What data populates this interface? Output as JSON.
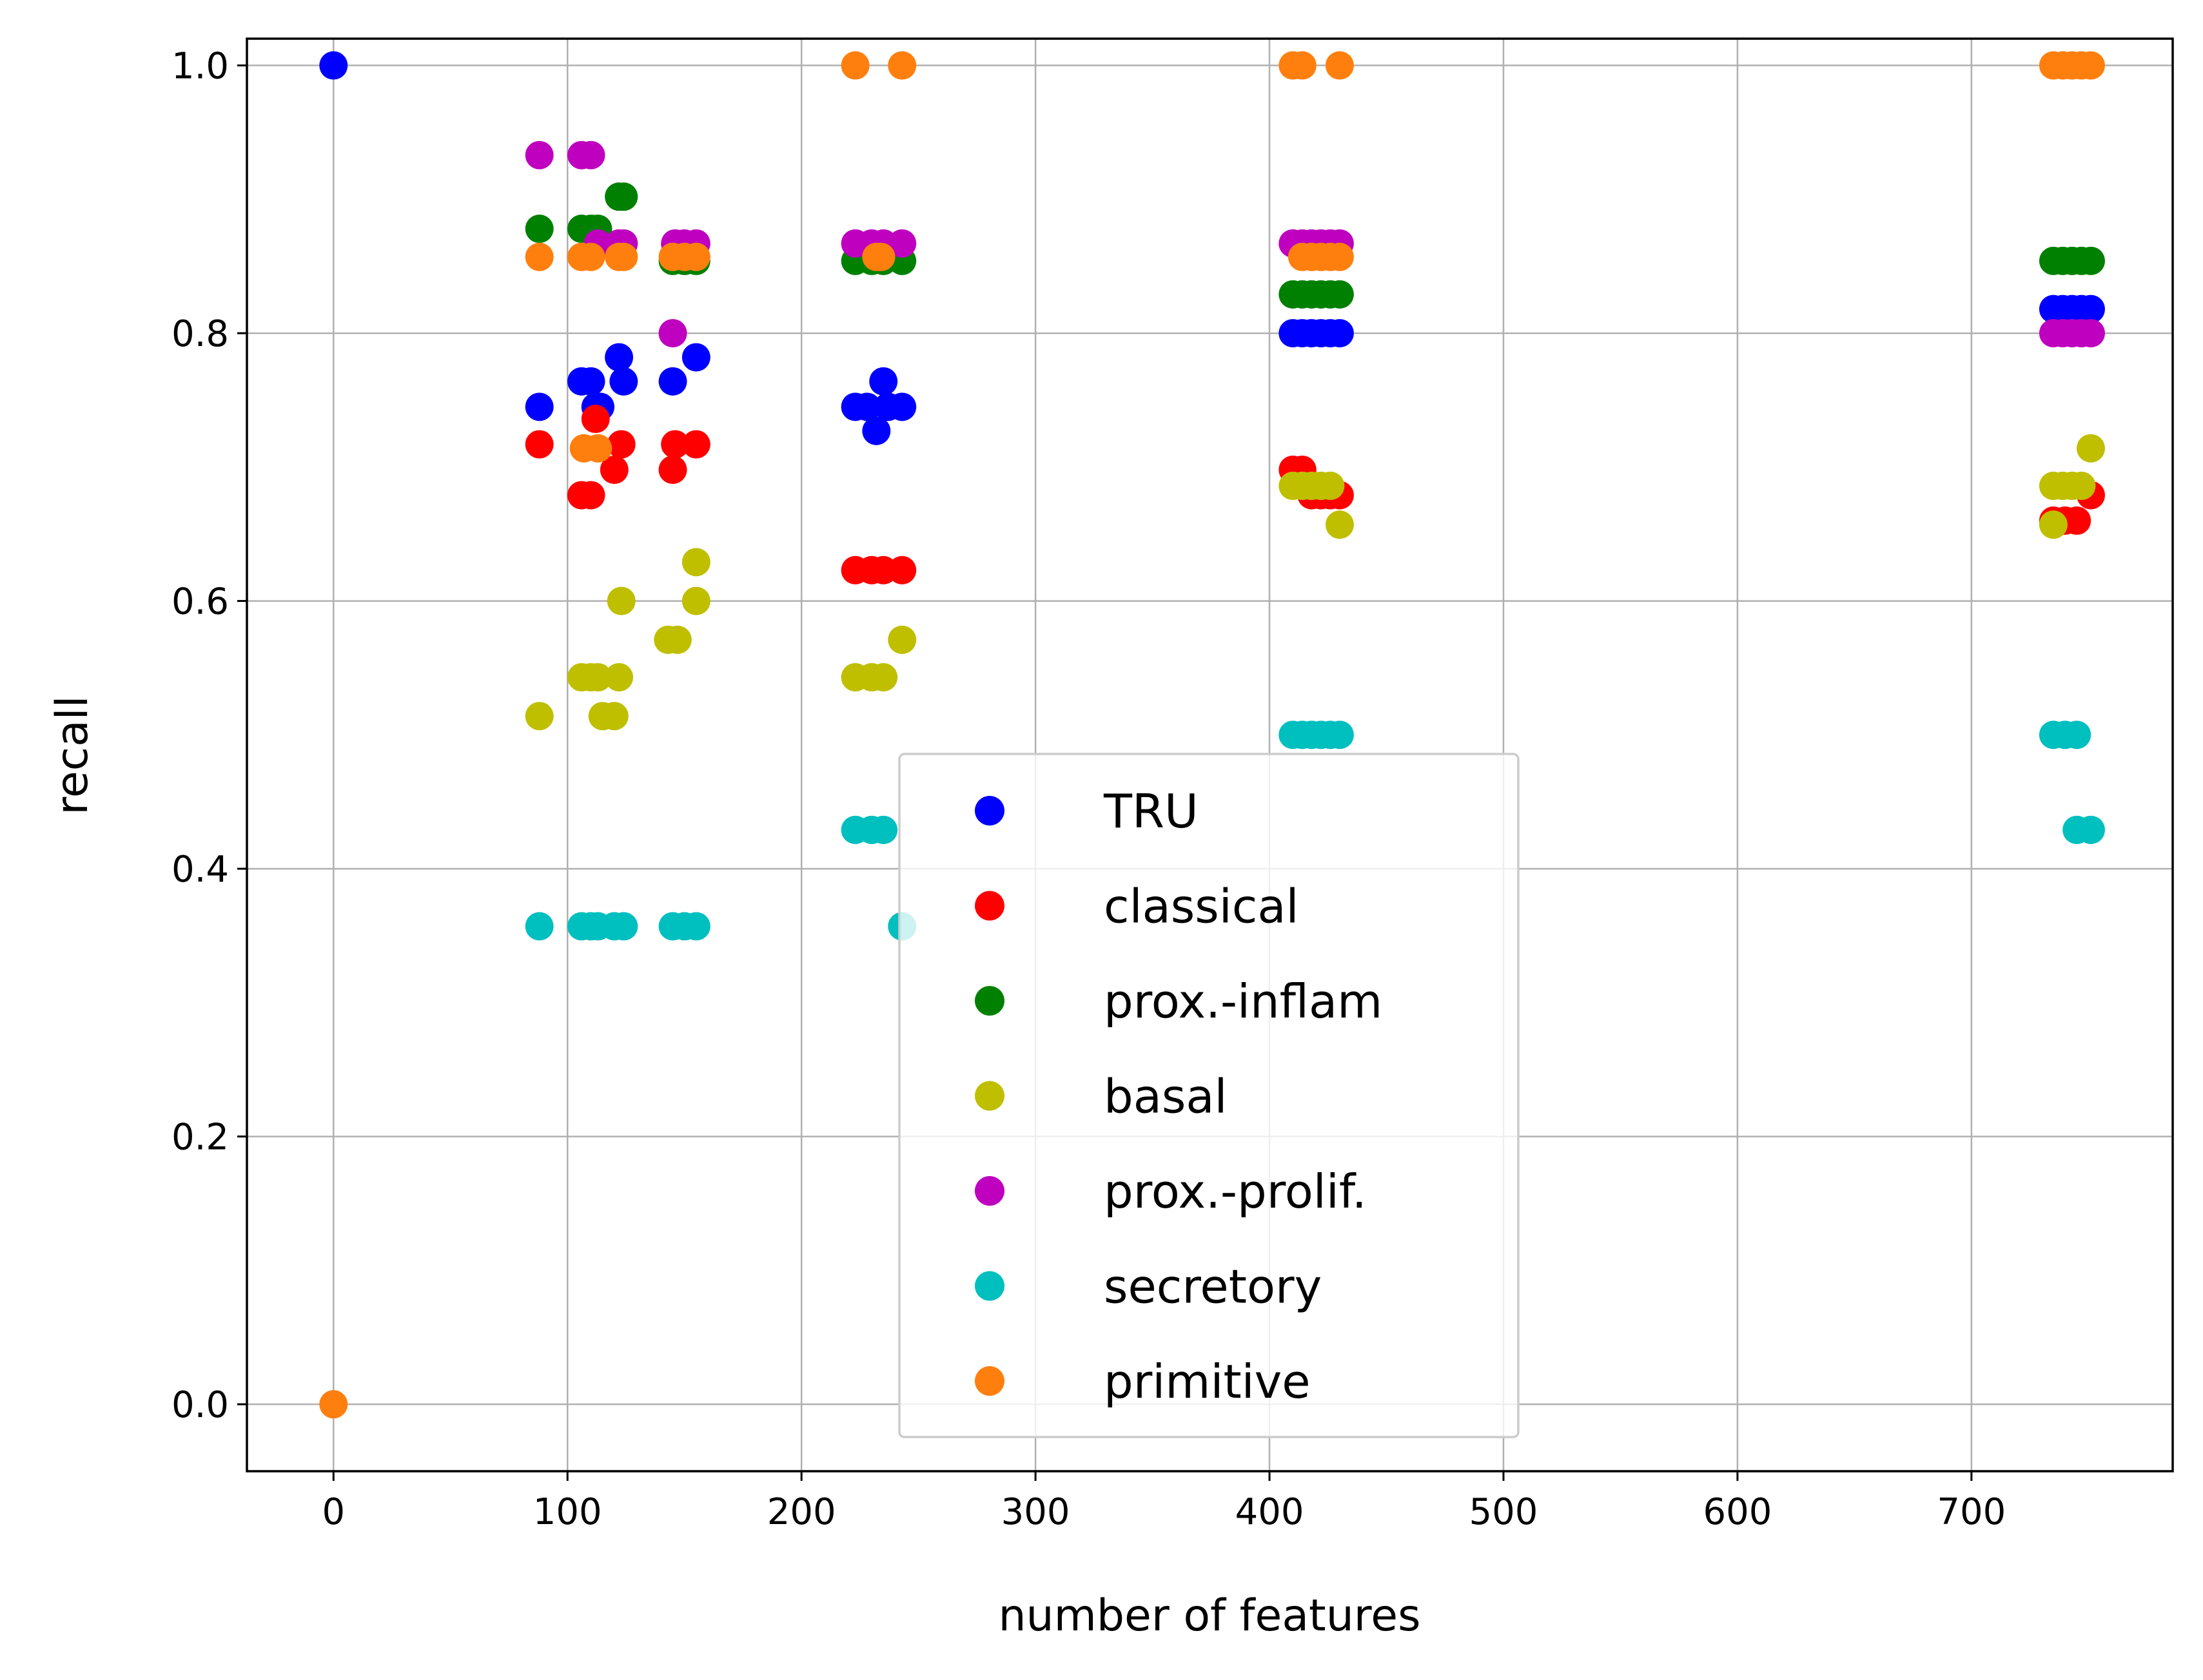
{
  "chart_data": {
    "type": "scatter",
    "title": "",
    "xlabel": "number of features",
    "ylabel": "recall",
    "xlim": [
      -37,
      786
    ],
    "ylim": [
      -0.05,
      1.02
    ],
    "xticks": [
      0,
      100,
      200,
      300,
      400,
      500,
      600,
      700
    ],
    "yticks": [
      0.0,
      0.2,
      0.4,
      0.6,
      0.8,
      1.0
    ],
    "xtick_labels": [
      "0",
      "100",
      "200",
      "300",
      "400",
      "500",
      "600",
      "700"
    ],
    "ytick_labels": [
      "0.0",
      "0.2",
      "0.4",
      "0.6",
      "0.8",
      "1.0"
    ],
    "grid": true,
    "legend_position": "lower-center",
    "series": [
      {
        "name": "TRU",
        "color": "#0000ff",
        "points": [
          [
            0,
            1.0
          ],
          [
            88,
            0.745
          ],
          [
            106,
            0.764
          ],
          [
            110,
            0.764
          ],
          [
            112,
            0.745
          ],
          [
            114,
            0.745
          ],
          [
            122,
            0.782
          ],
          [
            124,
            0.764
          ],
          [
            145,
            0.764
          ],
          [
            155,
            0.782
          ],
          [
            223,
            0.745
          ],
          [
            228,
            0.745
          ],
          [
            232,
            0.727
          ],
          [
            235,
            0.764
          ],
          [
            237,
            0.745
          ],
          [
            243,
            0.745
          ],
          [
            410,
            0.8
          ],
          [
            414,
            0.8
          ],
          [
            418,
            0.8
          ],
          [
            422,
            0.8
          ],
          [
            426,
            0.8
          ],
          [
            430,
            0.8
          ],
          [
            735,
            0.818
          ],
          [
            739,
            0.818
          ],
          [
            743,
            0.818
          ],
          [
            747,
            0.818
          ],
          [
            751,
            0.818
          ]
        ]
      },
      {
        "name": "classical",
        "color": "#ff0000",
        "points": [
          [
            88,
            0.717
          ],
          [
            106,
            0.679
          ],
          [
            110,
            0.679
          ],
          [
            112,
            0.736
          ],
          [
            120,
            0.698
          ],
          [
            123,
            0.717
          ],
          [
            145,
            0.698
          ],
          [
            146,
            0.717
          ],
          [
            155,
            0.717
          ],
          [
            223,
            0.623
          ],
          [
            230,
            0.623
          ],
          [
            235,
            0.623
          ],
          [
            243,
            0.623
          ],
          [
            410,
            0.698
          ],
          [
            414,
            0.698
          ],
          [
            418,
            0.679
          ],
          [
            422,
            0.679
          ],
          [
            426,
            0.679
          ],
          [
            430,
            0.679
          ],
          [
            735,
            0.66
          ],
          [
            740,
            0.66
          ],
          [
            745,
            0.66
          ],
          [
            751,
            0.679
          ]
        ]
      },
      {
        "name": "prox.-inflam",
        "color": "#008000",
        "points": [
          [
            88,
            0.878
          ],
          [
            106,
            0.878
          ],
          [
            110,
            0.878
          ],
          [
            113,
            0.878
          ],
          [
            122,
            0.902
          ],
          [
            124,
            0.902
          ],
          [
            145,
            0.854
          ],
          [
            150,
            0.854
          ],
          [
            155,
            0.854
          ],
          [
            223,
            0.854
          ],
          [
            230,
            0.854
          ],
          [
            235,
            0.854
          ],
          [
            243,
            0.854
          ],
          [
            410,
            0.829
          ],
          [
            414,
            0.829
          ],
          [
            418,
            0.829
          ],
          [
            422,
            0.829
          ],
          [
            426,
            0.829
          ],
          [
            430,
            0.829
          ],
          [
            735,
            0.854
          ],
          [
            739,
            0.854
          ],
          [
            743,
            0.854
          ],
          [
            747,
            0.854
          ],
          [
            751,
            0.854
          ]
        ]
      },
      {
        "name": "basal",
        "color": "#bfbf00",
        "points": [
          [
            88,
            0.514
          ],
          [
            106,
            0.543
          ],
          [
            110,
            0.543
          ],
          [
            113,
            0.543
          ],
          [
            115,
            0.514
          ],
          [
            120,
            0.514
          ],
          [
            122,
            0.543
          ],
          [
            123,
            0.6
          ],
          [
            143,
            0.571
          ],
          [
            147,
            0.571
          ],
          [
            155,
            0.629
          ],
          [
            155,
            0.6
          ],
          [
            223,
            0.543
          ],
          [
            230,
            0.543
          ],
          [
            235,
            0.543
          ],
          [
            243,
            0.571
          ],
          [
            410,
            0.686
          ],
          [
            414,
            0.686
          ],
          [
            418,
            0.686
          ],
          [
            422,
            0.686
          ],
          [
            426,
            0.686
          ],
          [
            430,
            0.657
          ],
          [
            735,
            0.686
          ],
          [
            739,
            0.686
          ],
          [
            743,
            0.686
          ],
          [
            747,
            0.686
          ],
          [
            735,
            0.657
          ],
          [
            751,
            0.714
          ]
        ]
      },
      {
        "name": "prox.-prolif.",
        "color": "#bf00bf",
        "points": [
          [
            88,
            0.933
          ],
          [
            106,
            0.933
          ],
          [
            110,
            0.933
          ],
          [
            113,
            0.867
          ],
          [
            122,
            0.867
          ],
          [
            124,
            0.867
          ],
          [
            145,
            0.8
          ],
          [
            146,
            0.867
          ],
          [
            150,
            0.867
          ],
          [
            155,
            0.867
          ],
          [
            223,
            0.867
          ],
          [
            230,
            0.867
          ],
          [
            235,
            0.867
          ],
          [
            243,
            0.867
          ],
          [
            410,
            0.867
          ],
          [
            414,
            0.867
          ],
          [
            418,
            0.867
          ],
          [
            422,
            0.867
          ],
          [
            426,
            0.867
          ],
          [
            430,
            0.867
          ],
          [
            735,
            0.8
          ],
          [
            739,
            0.8
          ],
          [
            743,
            0.8
          ],
          [
            747,
            0.8
          ],
          [
            751,
            0.8
          ]
        ]
      },
      {
        "name": "secretory",
        "color": "#00bfbf",
        "points": [
          [
            88,
            0.357
          ],
          [
            106,
            0.357
          ],
          [
            110,
            0.357
          ],
          [
            113,
            0.357
          ],
          [
            120,
            0.357
          ],
          [
            124,
            0.357
          ],
          [
            145,
            0.357
          ],
          [
            150,
            0.357
          ],
          [
            155,
            0.357
          ],
          [
            223,
            0.429
          ],
          [
            230,
            0.429
          ],
          [
            235,
            0.429
          ],
          [
            243,
            0.357
          ],
          [
            410,
            0.5
          ],
          [
            414,
            0.5
          ],
          [
            418,
            0.5
          ],
          [
            422,
            0.5
          ],
          [
            426,
            0.5
          ],
          [
            430,
            0.5
          ],
          [
            735,
            0.5
          ],
          [
            740,
            0.5
          ],
          [
            745,
            0.5
          ],
          [
            745,
            0.429
          ],
          [
            751,
            0.429
          ]
        ]
      },
      {
        "name": "primitive",
        "color": "#ff7f0e",
        "points": [
          [
            0,
            0.0
          ],
          [
            88,
            0.857
          ],
          [
            106,
            0.857
          ],
          [
            110,
            0.857
          ],
          [
            122,
            0.857
          ],
          [
            124,
            0.857
          ],
          [
            145,
            0.857
          ],
          [
            150,
            0.857
          ],
          [
            155,
            0.857
          ],
          [
            107,
            0.714
          ],
          [
            113,
            0.714
          ],
          [
            223,
            1.0
          ],
          [
            243,
            1.0
          ],
          [
            232,
            0.857
          ],
          [
            234,
            0.857
          ],
          [
            410,
            1.0
          ],
          [
            414,
            1.0
          ],
          [
            430,
            1.0
          ],
          [
            414,
            0.857
          ],
          [
            418,
            0.857
          ],
          [
            422,
            0.857
          ],
          [
            426,
            0.857
          ],
          [
            430,
            0.857
          ],
          [
            735,
            1.0
          ],
          [
            739,
            1.0
          ],
          [
            743,
            1.0
          ],
          [
            747,
            1.0
          ],
          [
            751,
            1.0
          ]
        ]
      }
    ]
  }
}
